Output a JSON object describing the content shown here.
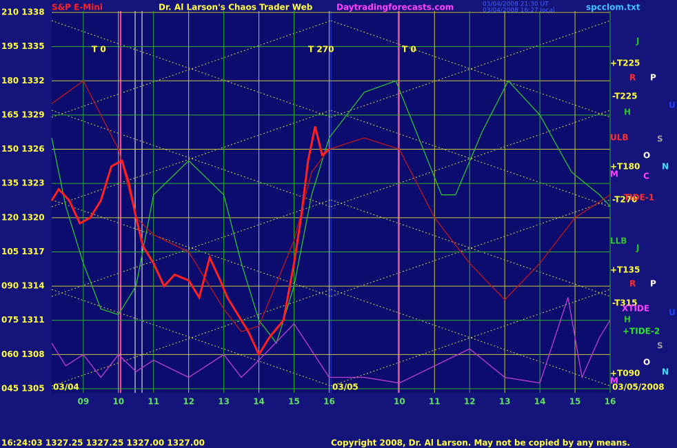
{
  "chart_data": {
    "type": "line",
    "header": [
      "S&P E-Mini",
      "Dr. Al Larson's Chaos Trader Web",
      "Daytradingforecasts.com",
      "03/04/2008 21:30 UT",
      "03/04/2008 16:27 local",
      "spcclom.txt"
    ],
    "footer": [
      "16:24:03  1327.25  1327.25  1327.00  1327.00",
      "Copyright 2008, Dr. Al Larson. May not be copied by any means."
    ],
    "annotations": [
      "T 0",
      "T 270",
      "T 0",
      "03/04",
      "03/05",
      "03/05/2008",
      "+T225",
      "R",
      "P",
      "J",
      "-T225",
      "H",
      "U",
      "ULB",
      "S",
      "O",
      "+T180",
      "N",
      "M",
      "C",
      "-T270",
      "TIDE-1",
      "LLB",
      "J",
      "+T135",
      "R",
      "P",
      "-T315",
      "XTIDE",
      "U",
      "H",
      "+TIDE-2",
      "S",
      "O",
      "+T090",
      "N",
      "M"
    ],
    "xlim": [
      8.1,
      24
    ],
    "xticks": [
      {
        "value": 9,
        "label": "09"
      },
      10,
      11,
      12,
      13,
      14,
      15,
      16,
      {
        "value": 18,
        "label": "10"
      },
      {
        "value": 19,
        "label": "11"
      },
      {
        "value": 20,
        "label": "12"
      },
      {
        "value": 21,
        "label": "13"
      },
      {
        "value": 22,
        "label": "14"
      },
      {
        "value": 23,
        "label": "15"
      },
      {
        "value": 24,
        "label": "16"
      }
    ],
    "ylim": [
      1305,
      1338
    ],
    "yticks": [
      {
        "value": 1338,
        "label": "210 1338"
      },
      {
        "value": 1335,
        "label": "195 1335"
      },
      {
        "value": 1332,
        "label": "180 1332"
      },
      {
        "value": 1329,
        "label": "165 1329"
      },
      {
        "value": 1326,
        "label": "150 1326"
      },
      {
        "value": 1323,
        "label": "135 1323"
      },
      {
        "value": 1320,
        "label": "120 1320"
      },
      {
        "value": 1317,
        "label": "105 1317"
      },
      {
        "value": 1314,
        "label": "090 1314"
      },
      {
        "value": 1311,
        "label": "075 1311"
      },
      {
        "value": 1308,
        "label": "060 1308"
      },
      {
        "value": 1305,
        "label": "045 1305"
      }
    ],
    "grid": true,
    "series": [
      {
        "color": "#30c030",
        "x": [
          8.1,
          8.5,
          9,
          9.5,
          10,
          10.5,
          11,
          12,
          13,
          13.5,
          14,
          14.5,
          15,
          15.5,
          16,
          16.5,
          17,
          17.9,
          19.2,
          19.6,
          20.35,
          21.1,
          22,
          22.9,
          23.7,
          24
        ],
        "values": [
          1327,
          1321,
          1316,
          1312,
          1311.5,
          1314,
          1322,
          1325,
          1322,
          1316,
          1311,
          1309,
          1314,
          1322,
          1327,
          1329,
          1331,
          1332,
          1322,
          1322,
          1327.5,
          1332,
          1329,
          1324,
          1322,
          1321
        ]
      },
      {
        "color": "#c01818",
        "x": [
          8.1,
          9,
          10,
          10.5,
          11,
          12,
          13,
          13.5,
          14,
          15,
          15.5,
          16,
          17,
          18,
          19,
          20,
          21,
          22,
          23,
          24
        ],
        "values": [
          1330,
          1332,
          1326,
          1320,
          1318.5,
          1317,
          1312,
          1310,
          1310.5,
          1318,
          1324,
          1326,
          1327,
          1326,
          1320,
          1316,
          1312.8,
          1316,
          1320,
          1322
        ]
      },
      {
        "color": "#c040d0",
        "x": [
          8.1,
          8.5,
          9,
          9.5,
          10,
          10.5,
          11,
          12,
          13,
          13.5,
          14,
          15,
          16,
          17,
          18,
          19,
          20,
          21,
          22,
          22.8,
          23.2,
          23.7,
          24
        ],
        "values": [
          1309,
          1307,
          1308,
          1306,
          1308,
          1306.5,
          1307.5,
          1306,
          1308,
          1306,
          1307.5,
          1310.7,
          1306,
          1306,
          1305.5,
          1307,
          1308.5,
          1306,
          1305.5,
          1313,
          1306,
          1309.5,
          1311
        ]
      },
      {
        "color": "#ff2020",
        "x": [
          8.1,
          8.3,
          8.6,
          8.9,
          9.2,
          9.5,
          9.8,
          10.1,
          10.3,
          10.5,
          10.7,
          11,
          11.3,
          11.6,
          12,
          12.3,
          12.6,
          12.9,
          13.1,
          13.4,
          13.7,
          14,
          14.3,
          14.7,
          15,
          15.2,
          15.4,
          15.6,
          15.8,
          16
        ],
        "values": [
          1321.5,
          1322.5,
          1321.5,
          1319.5,
          1320,
          1321.5,
          1324.5,
          1325,
          1323,
          1320,
          1317.5,
          1316,
          1314,
          1315,
          1314.5,
          1313,
          1316.5,
          1314.5,
          1313,
          1311.5,
          1310,
          1308,
          1309.5,
          1311,
          1316,
          1320,
          1325,
          1328,
          1325.5,
          1326
        ]
      }
    ]
  }
}
